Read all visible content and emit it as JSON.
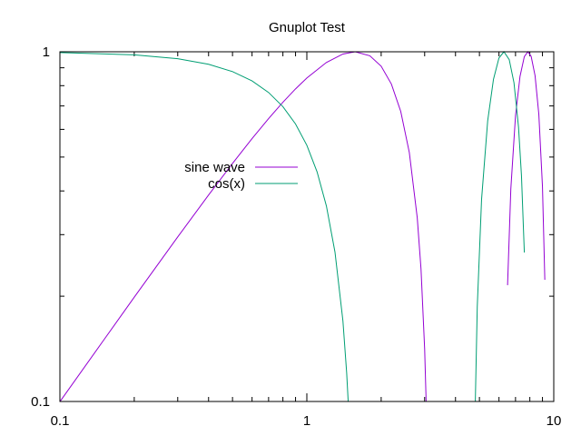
{
  "chart_data": {
    "type": "line",
    "title": "Gnuplot Test",
    "xlabel": "",
    "ylabel": "",
    "x_scale": "log",
    "y_scale": "log",
    "xlim": [
      0.1,
      10
    ],
    "ylim": [
      0.1,
      1
    ],
    "x_major_ticks": [
      0.1,
      1,
      10
    ],
    "x_tick_labels": [
      "0.1",
      "1",
      "10"
    ],
    "y_major_ticks": [
      0.1,
      1
    ],
    "y_tick_labels": [
      "0.1",
      "1"
    ],
    "grid": false,
    "legend_position": "center-left",
    "series": [
      {
        "name": "sine wave",
        "color": "#9400d3",
        "segments": [
          [
            [
              0.1,
              0.0998
            ],
            [
              0.15,
              0.1494
            ],
            [
              0.2,
              0.1987
            ],
            [
              0.3,
              0.2955
            ],
            [
              0.4,
              0.3894
            ],
            [
              0.5,
              0.4794
            ],
            [
              0.6,
              0.5646
            ],
            [
              0.7,
              0.6442
            ],
            [
              0.8,
              0.7174
            ],
            [
              0.9,
              0.7833
            ],
            [
              1.0,
              0.8415
            ],
            [
              1.2,
              0.932
            ],
            [
              1.4,
              0.9854
            ],
            [
              1.5708,
              1.0
            ],
            [
              1.8,
              0.9738
            ],
            [
              2.0,
              0.9093
            ],
            [
              2.2,
              0.8085
            ],
            [
              2.4,
              0.6755
            ],
            [
              2.6,
              0.5155
            ],
            [
              2.8,
              0.335
            ],
            [
              2.9,
              0.2392
            ],
            [
              3.0,
              0.1411
            ],
            [
              3.042,
              0.0989
            ]
          ],
          [
            [
              6.5,
              0.2151
            ],
            [
              6.7,
              0.4048
            ],
            [
              7.0,
              0.657
            ],
            [
              7.3,
              0.8504
            ],
            [
              7.6,
              0.9687
            ],
            [
              7.854,
              1.0
            ],
            [
              8.1,
              0.9699
            ],
            [
              8.4,
              0.8546
            ],
            [
              8.7,
              0.6628
            ],
            [
              9.0,
              0.4121
            ],
            [
              9.2,
              0.2229
            ]
          ]
        ]
      },
      {
        "name": "cos(x)",
        "color": "#009e73",
        "segments": [
          [
            [
              0.1,
              0.995
            ],
            [
              0.2,
              0.9801
            ],
            [
              0.3,
              0.9553
            ],
            [
              0.4,
              0.9211
            ],
            [
              0.5,
              0.8776
            ],
            [
              0.6,
              0.8253
            ],
            [
              0.7,
              0.7648
            ],
            [
              0.8,
              0.6967
            ],
            [
              0.9,
              0.6216
            ],
            [
              1.0,
              0.5403
            ],
            [
              1.1,
              0.4536
            ],
            [
              1.2,
              0.3624
            ],
            [
              1.3,
              0.2675
            ],
            [
              1.4,
              0.17
            ],
            [
              1.45,
              0.1205
            ],
            [
              1.4706,
              0.0998
            ]
          ],
          [
            [
              4.812,
              0.0998
            ],
            [
              4.9,
              0.1865
            ],
            [
              5.1,
              0.378
            ],
            [
              5.4,
              0.6347
            ],
            [
              5.7,
              0.8347
            ],
            [
              6.0,
              0.9602
            ],
            [
              6.2832,
              1.0
            ],
            [
              6.6,
              0.9502
            ],
            [
              6.9,
              0.8157
            ],
            [
              7.2,
              0.6084
            ],
            [
              7.4,
              0.4425
            ],
            [
              7.6,
              0.2666
            ]
          ]
        ]
      }
    ]
  }
}
